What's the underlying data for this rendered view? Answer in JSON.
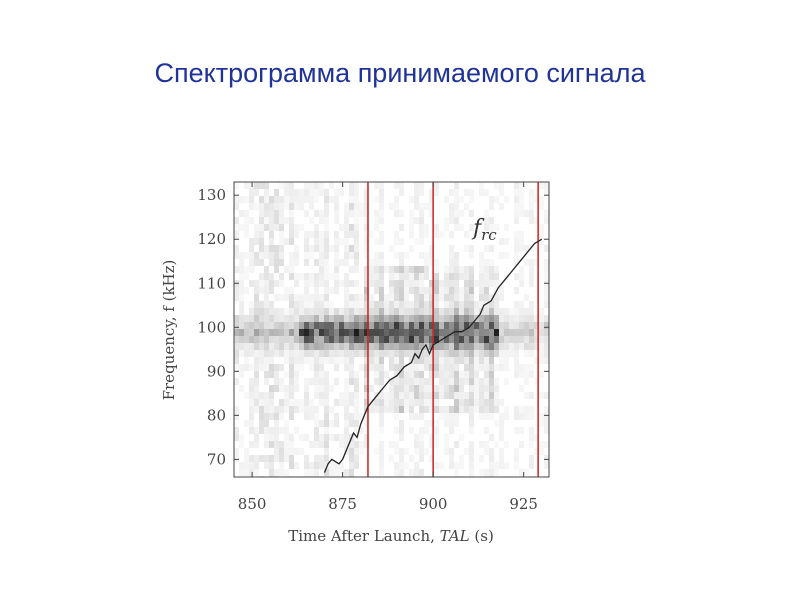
{
  "slide": {
    "title": "Спектрограмма принимаемого сигнала"
  },
  "chart_data": {
    "type": "heatmap",
    "xlabel": "Time After Launch, TAL (s)",
    "ylabel": "Frequency, f (kHz)",
    "xlim": [
      845,
      932
    ],
    "ylim": [
      66,
      133
    ],
    "xticks": [
      850,
      875,
      900,
      925
    ],
    "yticks": [
      70,
      80,
      90,
      100,
      110,
      120,
      130
    ],
    "colormap": "grayscale, dark = high intensity",
    "vertical_lines": {
      "color": "#cc2222",
      "x": [
        882,
        900,
        929
      ]
    },
    "annotation": {
      "text": "f",
      "subscript": "rc",
      "x": 911,
      "y": 121
    },
    "f_rc_curve": {
      "x": [
        870,
        871,
        872,
        874,
        875,
        876,
        877,
        878,
        879,
        880,
        881,
        882,
        884,
        886,
        888,
        890,
        892,
        894,
        895,
        896,
        897,
        898,
        899,
        900,
        902,
        904,
        906,
        908,
        910,
        912,
        913,
        914,
        916,
        918,
        920,
        922,
        924,
        926,
        928,
        930
      ],
      "y": [
        67,
        69,
        70,
        69,
        70,
        72,
        74,
        76,
        75,
        78,
        80,
        82,
        84,
        86,
        88,
        89,
        91,
        92,
        94,
        93,
        95,
        96,
        94,
        96,
        97,
        98,
        99,
        99,
        100,
        102,
        103,
        105,
        106,
        109,
        111,
        113,
        115,
        117,
        119,
        120
      ]
    }
  }
}
